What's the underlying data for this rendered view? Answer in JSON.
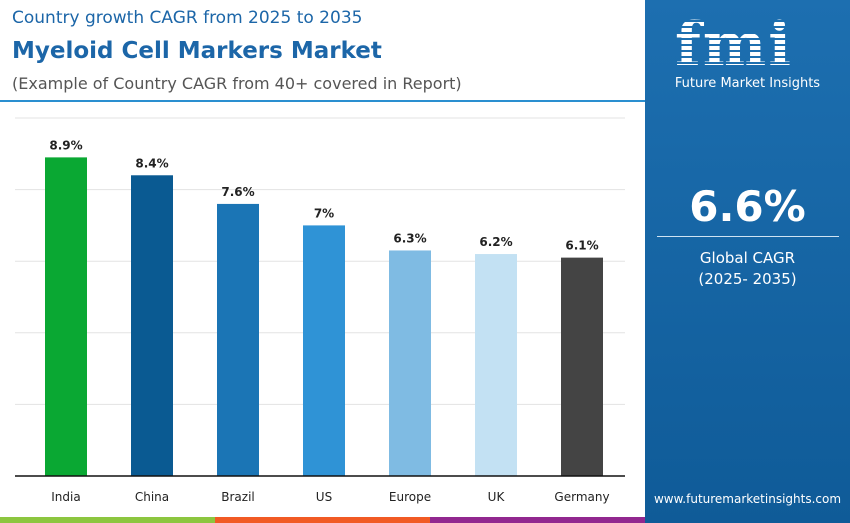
{
  "header": {
    "subtitle": "Country growth CAGR from 2025 to 2035",
    "title": "Myeloid Cell Markers Market",
    "note": "(Example of Country CAGR from 40+ covered in Report)"
  },
  "sidebar": {
    "logo_text": "fmi",
    "brand": "Future Market Insights",
    "global_value": "6.6%",
    "global_label": "Global CAGR",
    "global_period": "(2025- 2035)",
    "website": "www.futuremarketinsights.com"
  },
  "colors": {
    "accent": "#1c66a8",
    "panel": "#1d6fb0",
    "strip": [
      "#8cc63f",
      "#f15a24",
      "#92278f"
    ]
  },
  "chart_data": {
    "type": "bar",
    "categories": [
      "India",
      "China",
      "Brazil",
      "US",
      "Europe",
      "UK",
      "Germany"
    ],
    "values": [
      8.9,
      8.4,
      7.6,
      7,
      6.3,
      6.2,
      6.1
    ],
    "labels": [
      "8.9%",
      "8.4%",
      "7.6%",
      "7%",
      "6.3%",
      "6.2%",
      "6.1%"
    ],
    "colors": [
      "#0aa833",
      "#0a5a92",
      "#1b75b5",
      "#2f93d6",
      "#7fbbe3",
      "#c3e1f3",
      "#444444"
    ],
    "ylim": [
      0,
      10
    ],
    "grid": true,
    "unit": "%"
  }
}
